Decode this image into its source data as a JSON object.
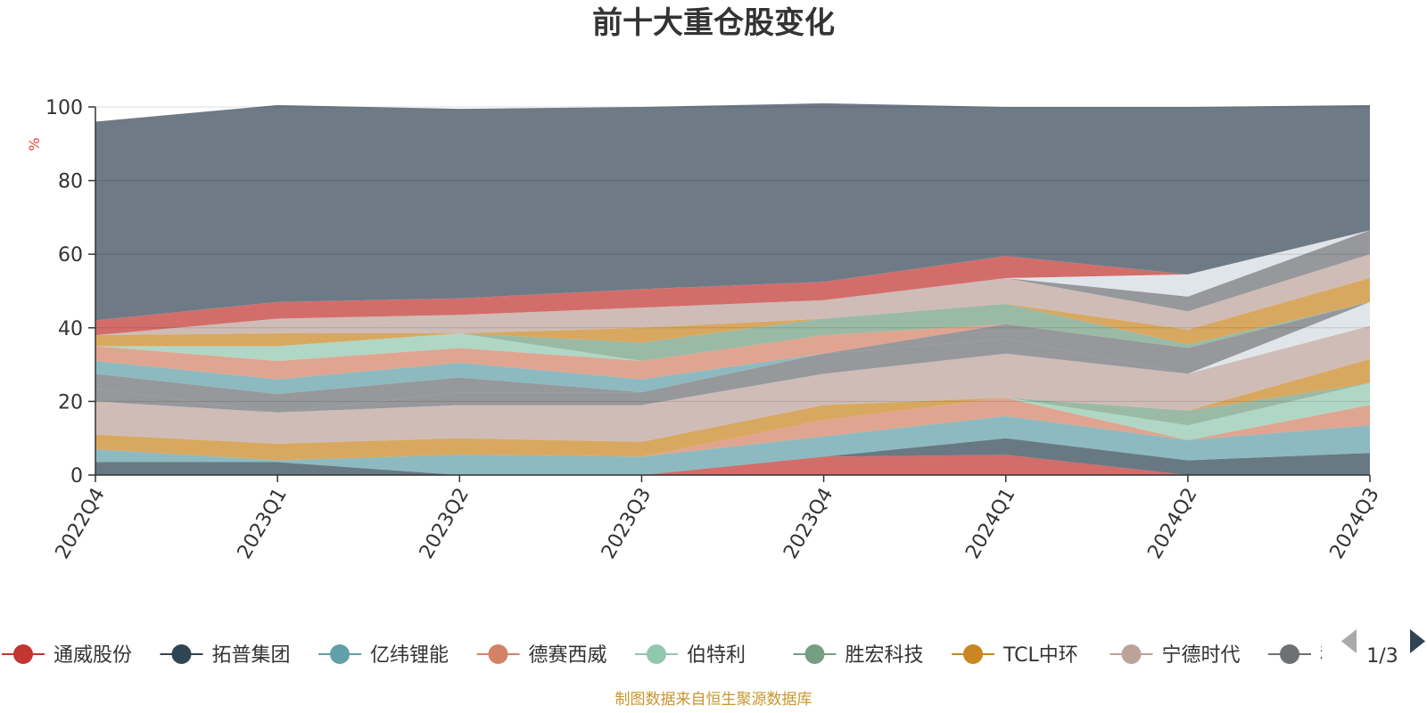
{
  "colors": {
    "tongwei": "#c23531",
    "tuopu": "#2f4554",
    "yiwei": "#61a0a8",
    "desai": "#d48265",
    "boteli": "#91c7ae",
    "shenghong": "#749f83",
    "tcl": "#ca8622",
    "ningde": "#bda29a",
    "keda": "#6e7074",
    "others": "#6e7b87",
    "light": "#d4dbe2"
  },
  "chart_data": {
    "type": "area",
    "title": "前十大重仓股变化",
    "ylabel": "%",
    "ylim": [
      0,
      100
    ],
    "yticks": [
      "0",
      "20",
      "40",
      "60",
      "80",
      "100"
    ],
    "categories": [
      "2022Q4",
      "2023Q1",
      "2023Q2",
      "2023Q3",
      "2023Q4",
      "2024Q1",
      "2024Q2",
      "2024Q3"
    ],
    "series": [
      {
        "name": "通威股份",
        "color": "tongwei",
        "values": [
          0,
          0,
          0,
          0,
          5,
          5.5,
          0,
          0
        ]
      },
      {
        "name": "拓普集团",
        "color": "tuopu",
        "values": [
          3.5,
          3.5,
          0,
          0,
          0,
          4.5,
          4,
          6
        ]
      },
      {
        "name": "亿纬锂能",
        "color": "yiwei",
        "values": [
          3.5,
          0.5,
          5.5,
          5,
          5.5,
          6,
          5.5,
          7.5
        ]
      },
      {
        "name": "德赛西威",
        "color": "desai",
        "values": [
          0,
          0,
          0,
          0,
          4.5,
          5,
          0,
          5.5
        ]
      },
      {
        "name": "伯特利",
        "color": "boteli",
        "values": [
          0,
          0,
          0,
          0,
          0,
          0,
          4,
          6
        ]
      },
      {
        "name": "胜宏科技",
        "color": "shenghong",
        "values": [
          0,
          0,
          0,
          0,
          0,
          0,
          4,
          0
        ]
      },
      {
        "name": "TCL中环",
        "color": "tcl",
        "values": [
          4,
          4.5,
          4.5,
          4,
          4,
          0,
          0,
          6.5
        ]
      },
      {
        "name": "宁德时代",
        "color": "ningde",
        "values": [
          9,
          8.5,
          9,
          10,
          8.5,
          12,
          10,
          9
        ]
      },
      {
        "name": "科达利",
        "color": "keda",
        "values": [
          3.5,
          0,
          3.5,
          3.5,
          5.5,
          4,
          0,
          0
        ]
      },
      {
        "name": "",
        "color": "light",
        "values": [
          0,
          0,
          0,
          0,
          0,
          0,
          0,
          6.5
        ]
      },
      {
        "name": "",
        "color": "keda",
        "values": [
          4,
          5,
          4,
          0,
          0,
          4,
          7,
          0
        ]
      },
      {
        "name": "",
        "color": "yiwei",
        "values": [
          3.5,
          4,
          4,
          3.5,
          0,
          0,
          0,
          0
        ]
      },
      {
        "name": "",
        "color": "desai",
        "values": [
          4,
          5,
          4,
          5,
          5,
          0,
          0,
          0
        ]
      },
      {
        "name": "",
        "color": "boteli",
        "values": [
          0,
          4,
          4,
          0,
          0,
          0,
          0,
          0
        ]
      },
      {
        "name": "",
        "color": "shenghong",
        "values": [
          0,
          0,
          0,
          5,
          4.5,
          5.5,
          1,
          0
        ]
      },
      {
        "name": "",
        "color": "tcl",
        "values": [
          3,
          3.5,
          0,
          4,
          0,
          0,
          4,
          6.5
        ]
      },
      {
        "name": "",
        "color": "ningde",
        "values": [
          0,
          0,
          5,
          5.5,
          5,
          7,
          5,
          6.5
        ]
      },
      {
        "name": "",
        "color": "keda",
        "values": [
          0,
          0,
          0,
          0,
          0,
          0,
          4,
          6.5
        ]
      },
      {
        "name": "",
        "color": "light",
        "values": [
          0,
          0,
          0,
          0,
          0,
          0,
          6,
          0
        ]
      },
      {
        "name": "",
        "color": "ningde",
        "values": [
          0,
          4,
          0,
          0,
          0,
          0,
          0,
          0
        ]
      },
      {
        "name": "",
        "color": "tongwei",
        "values": [
          4,
          4.5,
          4.5,
          5,
          5,
          6,
          0,
          0
        ]
      },
      {
        "name": "",
        "color": "others",
        "values": [
          54,
          53.5,
          51.5,
          49.5,
          48.5,
          40.5,
          45.5,
          34
        ]
      }
    ],
    "legend": {
      "position": "bottom",
      "items": [
        {
          "name": "通威股份",
          "color": "tongwei"
        },
        {
          "name": "拓普集团",
          "color": "tuopu"
        },
        {
          "name": "亿纬锂能",
          "color": "yiwei"
        },
        {
          "name": "德赛西威",
          "color": "desai"
        },
        {
          "name": "伯特利",
          "color": "boteli"
        },
        {
          "name": "胜宏科技",
          "color": "shenghong"
        },
        {
          "name": "TCL中环",
          "color": "tcl"
        },
        {
          "name": "宁德时代",
          "color": "ningde"
        },
        {
          "name": "科达利",
          "color": "keda"
        }
      ],
      "page": "1/3"
    },
    "source": "制图数据来自恒生聚源数据库"
  }
}
